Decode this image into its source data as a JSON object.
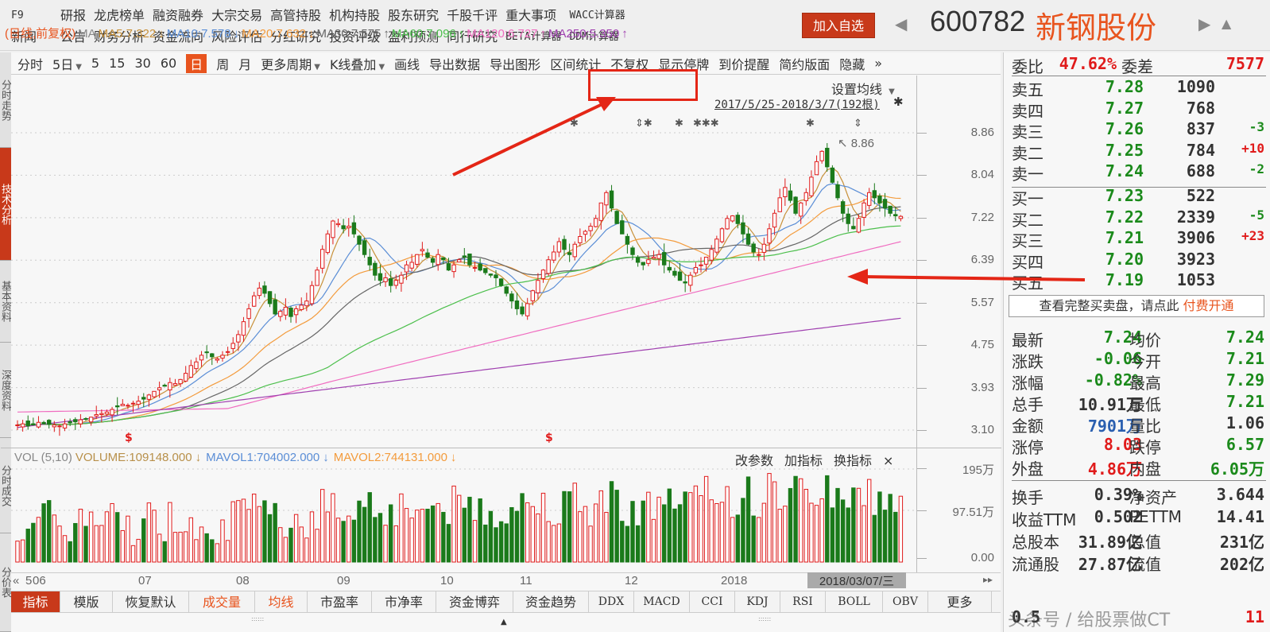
{
  "topnav": {
    "row1": [
      "F9",
      "研报",
      "龙虎榜单",
      "融资融券",
      "大宗交易",
      "高管持股",
      "机构持股",
      "股东研究",
      "千股千评",
      "重大事项",
      "WACC计算器"
    ],
    "row2": [
      "新闻",
      "公告",
      "财务分析",
      "资金流向",
      "风险评估",
      "分红研究",
      "投资评级",
      "盈利预测",
      "同行研究",
      "BETA计算器",
      "DDM计算器"
    ],
    "add_watch": "加入自选",
    "stock_code": "600782",
    "stock_name": "新钢股份"
  },
  "left_tabs": [
    {
      "label": "分时走势",
      "active": false
    },
    {
      "label": "技术分析",
      "active": true
    },
    {
      "label": "基本资料",
      "active": false
    },
    {
      "label": "深度资料",
      "active": false
    },
    {
      "label": "分时成交",
      "active": false
    },
    {
      "label": "分价表",
      "active": false
    }
  ],
  "toolbar": {
    "items": [
      {
        "label": "分时"
      },
      {
        "label": "5日",
        "dropdown": true
      },
      {
        "label": "5"
      },
      {
        "label": "15"
      },
      {
        "label": "30"
      },
      {
        "label": "60"
      },
      {
        "label": "日",
        "active": true
      },
      {
        "label": "周"
      },
      {
        "label": "月"
      },
      {
        "label": "更多周期",
        "dropdown": true
      },
      {
        "label": "K线叠加",
        "dropdown": true
      },
      {
        "label": "画线"
      },
      {
        "label": "导出数据"
      },
      {
        "label": "导出图形"
      },
      {
        "label": "区间统计"
      },
      {
        "label": "不复权"
      },
      {
        "label": "显示停牌"
      },
      {
        "label": "到价提醒"
      },
      {
        "label": "简约版面"
      },
      {
        "label": "隐藏"
      }
    ],
    "more": "»"
  },
  "ma_legend": {
    "prefix": "(日线,前复权)",
    "ma": "MA",
    "items": [
      {
        "label": "MA5:7.322",
        "arrow": "↓",
        "color": "#c8913a"
      },
      {
        "label": "MA10:7.578",
        "arrow": "↓",
        "color": "#5b8ed6"
      },
      {
        "label": "MA20:7.632",
        "arrow": "↓",
        "color": "#f39b3c"
      },
      {
        "label": "MA30:7.575",
        "arrow": "↑",
        "color": "#666666"
      },
      {
        "label": "MA60:7.096",
        "arrow": "↑",
        "color": "#4cbf4c"
      },
      {
        "label": "MA120:6.727",
        "arrow": "↑",
        "color": "#f06cc0"
      },
      {
        "label": "MA250:5.350",
        "arrow": "↑",
        "color": "#a040b0"
      }
    ],
    "set_ma": "设置均线",
    "range": "2017/5/25-2018/3/7(192根)"
  },
  "price_axis": [
    "8.86",
    "8.04",
    "7.22",
    "6.39",
    "5.57",
    "4.75",
    "3.93",
    "3.10"
  ],
  "high_label": "8.86",
  "volume": {
    "header": [
      {
        "label": "VOL (5,10)",
        "color": "#888888"
      },
      {
        "label": "VOLUME:109148.000",
        "arrow": "↓",
        "color": "#b8904a"
      },
      {
        "label": "MAVOL1:704002.000",
        "arrow": "↓",
        "color": "#5b8ed6"
      },
      {
        "label": "MAVOL2:744131.000",
        "arrow": "↓",
        "color": "#f39b3c"
      }
    ],
    "tools": [
      "改参数",
      "加指标",
      "换指标",
      "×"
    ],
    "axis": [
      "195万",
      "97.51万",
      "0.00"
    ]
  },
  "date_axis": [
    "5",
    "06",
    "07",
    "08",
    "09",
    "10",
    "11",
    "12",
    "2018"
  ],
  "current_date": "2018/03/07/三",
  "bottom_tabs": [
    {
      "label": "指标",
      "style": "active"
    },
    {
      "label": "模版"
    },
    {
      "label": "恢复默认"
    },
    {
      "label": "成交量",
      "style": "hl"
    },
    {
      "label": "均线",
      "style": "hl"
    },
    {
      "label": "市盈率"
    },
    {
      "label": "市净率"
    },
    {
      "label": "资金博弈"
    },
    {
      "label": "资金趋势"
    },
    {
      "label": "DDX",
      "style": "mono"
    },
    {
      "label": "MACD",
      "style": "mono"
    },
    {
      "label": "CCI",
      "style": "mono"
    },
    {
      "label": "KDJ",
      "style": "mono"
    },
    {
      "label": "RSI",
      "style": "mono"
    },
    {
      "label": "BOLL",
      "style": "mono"
    },
    {
      "label": "OBV",
      "style": "mono"
    },
    {
      "label": "更多"
    }
  ],
  "quote": {
    "weibi_label": "委比",
    "weibi": "47.62%",
    "weicha_label": "委差",
    "weicha": "7577",
    "asks": [
      {
        "label": "卖五",
        "price": "7.28",
        "vol": "1090",
        "chg": ""
      },
      {
        "label": "卖四",
        "price": "7.27",
        "vol": "768",
        "chg": ""
      },
      {
        "label": "卖三",
        "price": "7.26",
        "vol": "837",
        "chg": "-3"
      },
      {
        "label": "卖二",
        "price": "7.25",
        "vol": "784",
        "chg": "+10"
      },
      {
        "label": "卖一",
        "price": "7.24",
        "vol": "688",
        "chg": "-2"
      }
    ],
    "bids": [
      {
        "label": "买一",
        "price": "7.23",
        "vol": "522",
        "chg": ""
      },
      {
        "label": "买二",
        "price": "7.22",
        "vol": "2339",
        "chg": "-5"
      },
      {
        "label": "买三",
        "price": "7.21",
        "vol": "3906",
        "chg": "+23"
      },
      {
        "label": "买四",
        "price": "7.20",
        "vol": "3923",
        "chg": ""
      },
      {
        "label": "买五",
        "price": "7.19",
        "vol": "1053",
        "chg": ""
      }
    ],
    "full_book": "查看完整买卖盘，请点此",
    "pay": "付费开通",
    "stats": [
      {
        "l1": "最新",
        "v1": "7.24",
        "c1": "green",
        "l2": "均价",
        "v2": "7.24",
        "c2": "green"
      },
      {
        "l1": "涨跌",
        "v1": "-0.06",
        "c1": "green",
        "l2": "今开",
        "v2": "7.21",
        "c2": "green"
      },
      {
        "l1": "涨幅",
        "v1": "-0.82%",
        "c1": "green",
        "l2": "最高",
        "v2": "7.29",
        "c2": "green"
      },
      {
        "l1": "总手",
        "v1": "10.91万",
        "c1": "dark",
        "l2": "最低",
        "v2": "7.21",
        "c2": "green"
      },
      {
        "l1": "金额",
        "v1": "7901万",
        "c1": "blue",
        "l2": "量比",
        "v2": "1.06",
        "c2": "dark"
      },
      {
        "l1": "涨停",
        "v1": "8.03",
        "c1": "red",
        "l2": "跌停",
        "v2": "6.57",
        "c2": "green"
      },
      {
        "l1": "外盘",
        "v1": "4.86万",
        "c1": "red",
        "l2": "内盘",
        "v2": "6.05万",
        "c2": "green"
      }
    ],
    "fundamentals": [
      {
        "l1": "换手",
        "v1": "0.39%",
        "l2": "净资产",
        "v2": "3.644"
      },
      {
        "l1": "收益TTM",
        "v1": "0.502",
        "l2": "PETTM",
        "v2": "14.41"
      },
      {
        "l1": "总股本",
        "v1": "31.89亿",
        "l2": "总值",
        "v2": "231亿"
      },
      {
        "l1": "流通股",
        "v1": "27.87亿",
        "l2": "流值",
        "v2": "202亿"
      }
    ],
    "last_row_left": "0.5",
    "last_row_right": "11"
  },
  "watermark": "头条号 / 给股票做CT",
  "colors": {
    "up": "#e01b1b",
    "down": "#1b7a1b",
    "accent": "#c8391a",
    "name": "#e8541e"
  },
  "chart_closes": [
    3.2,
    3.22,
    3.18,
    3.2,
    3.25,
    3.22,
    3.21,
    3.2,
    3.18,
    3.22,
    3.24,
    3.26,
    3.3,
    3.32,
    3.35,
    3.4,
    3.42,
    3.45,
    3.5,
    3.55,
    3.6,
    3.58,
    3.62,
    3.66,
    3.7,
    3.78,
    3.85,
    3.92,
    3.95,
    4.02,
    4.0,
    4.08,
    4.2,
    4.35,
    4.42,
    4.55,
    4.6,
    4.52,
    4.48,
    4.55,
    4.62,
    4.78,
    4.95,
    5.2,
    5.45,
    5.7,
    5.85,
    5.75,
    5.55,
    5.35,
    5.4,
    5.48,
    5.3,
    5.45,
    5.52,
    5.6,
    5.9,
    6.2,
    6.6,
    6.9,
    7.15,
    7.1,
    7.0,
    7.05,
    6.9,
    6.7,
    6.5,
    6.3,
    6.1,
    6.0,
    6.05,
    5.9,
    6.0,
    6.1,
    6.3,
    6.35,
    6.5,
    6.6,
    6.45,
    6.35,
    6.5,
    6.4,
    6.2,
    6.3,
    6.4,
    6.45,
    6.3,
    6.25,
    6.2,
    6.15,
    6.1,
    6.05,
    5.9,
    5.75,
    5.6,
    5.45,
    5.35,
    5.55,
    5.8,
    6.0,
    6.2,
    6.4,
    6.55,
    6.75,
    6.6,
    6.5,
    6.7,
    6.85,
    6.95,
    7.05,
    7.2,
    7.5,
    7.7,
    7.4,
    7.1,
    6.9,
    6.7,
    6.5,
    6.35,
    6.3,
    6.4,
    6.45,
    6.5,
    6.3,
    6.2,
    6.1,
    6.0,
    5.95,
    6.1,
    6.25,
    6.3,
    6.45,
    6.6,
    6.8,
    7.0,
    7.2,
    7.25,
    7.1,
    6.9,
    6.7,
    6.55,
    6.5,
    6.7,
    7.0,
    7.3,
    7.6,
    7.8,
    7.55,
    7.3,
    7.5,
    7.7,
    8.0,
    8.3,
    8.5,
    8.2,
    7.9,
    7.6,
    7.3,
    7.1,
    7.0,
    7.2,
    7.5,
    7.7,
    7.6,
    7.5,
    7.4,
    7.3,
    7.25,
    7.24
  ],
  "chart_data_note": "closes approximated from chart"
}
